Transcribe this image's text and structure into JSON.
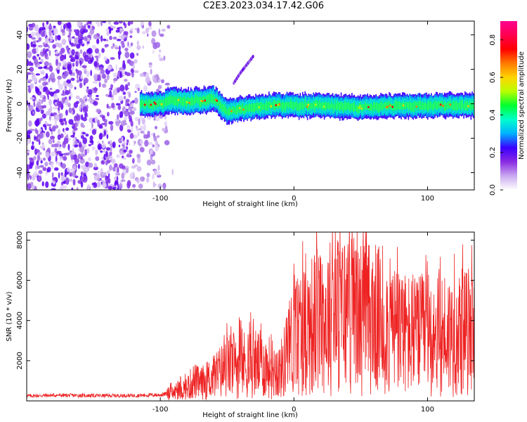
{
  "figure": {
    "title": "C2E3.2023.034.17.42.G06"
  },
  "chart_data": [
    {
      "type": "heatmap",
      "xlabel": "Height of straight line (km)",
      "ylabel": "Frequency (Hz)",
      "xlim": [
        -200,
        135
      ],
      "ylim": [
        -50,
        48
      ],
      "xticks": [
        -100,
        0,
        100
      ],
      "yticks": [
        -40,
        -20,
        0,
        20,
        40
      ],
      "colorbar": {
        "label": "Normalized spectral amplitude",
        "range": [
          0.0,
          0.9
        ],
        "ticks": [
          "0.0",
          "0.2",
          "0.4",
          "0.6",
          "0.8"
        ],
        "tick_values": [
          0.0,
          0.2,
          0.4,
          0.6,
          0.8
        ],
        "colors": [
          "#ffffff",
          "#c9a8f0",
          "#8a2be2",
          "#3a00ff",
          "#00b0ff",
          "#00ffcc",
          "#00ff30",
          "#b8ff00",
          "#ffd400",
          "#ff7a00",
          "#ff0000",
          "#ff0050",
          "#ff0090"
        ]
      },
      "ridge": {
        "x": [
          -115,
          -100,
          -90,
          -80,
          -70,
          -60,
          -50,
          -40,
          -30,
          -20,
          -10,
          0,
          20,
          40,
          60,
          80,
          100,
          120,
          135
        ],
        "y": [
          0,
          0,
          2,
          1,
          2,
          3,
          -4,
          -3,
          -2,
          -1,
          -1,
          -1,
          -1,
          -2,
          -2,
          -1,
          -1,
          -1,
          -1
        ]
      },
      "branch": {
        "x": [
          -45,
          -40,
          -35,
          -30
        ],
        "y": [
          12,
          18,
          23,
          28
        ]
      }
    },
    {
      "type": "line",
      "xlabel": "Height of straight line (km)",
      "ylabel": "SNR (10 * v/v)",
      "xlim": [
        -200,
        135
      ],
      "ylim": [
        0,
        8400
      ],
      "xticks": [
        -100,
        0,
        100
      ],
      "yticks": [
        2000,
        4000,
        6000,
        8000
      ],
      "series": [
        {
          "color": "#ee2222",
          "x": [
            -200,
            -180,
            -160,
            -140,
            -120,
            -100,
            -90,
            -80,
            -75,
            -70,
            -60,
            -50,
            -40,
            -30,
            -20,
            -10,
            0,
            10,
            20,
            30,
            40,
            50,
            60,
            70,
            80,
            90,
            100,
            110,
            120,
            135
          ],
          "y": [
            250,
            280,
            270,
            260,
            270,
            300,
            400,
            650,
            1000,
            850,
            1200,
            1700,
            1800,
            1900,
            1700,
            1500,
            3200,
            3700,
            4000,
            4300,
            4400,
            4200,
            4100,
            3700,
            3400,
            3200,
            3300,
            3400,
            3300,
            3500
          ]
        }
      ]
    }
  ]
}
